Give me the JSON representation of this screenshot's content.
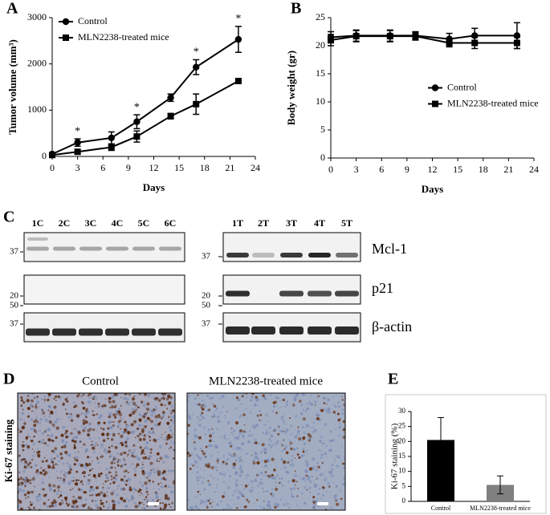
{
  "chart_data": [
    {
      "type": "line",
      "panel_label": "A",
      "x_label": "Days",
      "y_label": "Tumor volume (mm³)",
      "x": [
        0,
        3,
        7,
        10,
        14,
        17,
        22
      ],
      "series": [
        {
          "name": "Control",
          "color": "#000000",
          "marker": "circle",
          "values": [
            50,
            300,
            400,
            750,
            1270,
            1930,
            2530
          ],
          "errors": [
            30,
            80,
            130,
            150,
            80,
            160,
            280
          ]
        },
        {
          "name": "MLN2238-treated mice",
          "color": "#000000",
          "marker": "square",
          "values": [
            30,
            100,
            200,
            430,
            870,
            1130,
            1630
          ],
          "errors": [
            20,
            50,
            70,
            120,
            60,
            220,
            20
          ]
        }
      ],
      "annotations": [
        {
          "x": 3,
          "label": "*"
        },
        {
          "x": 10,
          "label": "*"
        },
        {
          "x": 17,
          "label": "*"
        },
        {
          "x": 22,
          "label": "*"
        }
      ],
      "xlim": [
        0,
        24
      ],
      "xticks": [
        0,
        3,
        6,
        9,
        12,
        15,
        18,
        21,
        24
      ],
      "ylim": [
        0,
        3000
      ],
      "yticks": [
        0,
        1000,
        2000,
        3000
      ],
      "legend": "upper left"
    },
    {
      "type": "line",
      "panel_label": "B",
      "x_label": "Days",
      "y_label": "Body weight (gr)",
      "x": [
        0,
        3,
        7,
        10,
        14,
        17,
        22
      ],
      "series": [
        {
          "name": "Control",
          "color": "#000000",
          "marker": "circle",
          "values": [
            21.5,
            21.8,
            21.8,
            21.8,
            21.2,
            21.8,
            21.8
          ],
          "errors": [
            1,
            1,
            1,
            0.7,
            1,
            1.3,
            2.3
          ]
        },
        {
          "name": "MLN2238-treated mice",
          "color": "#000000",
          "marker": "square",
          "values": [
            21,
            21.7,
            21.7,
            21.7,
            20.5,
            20.5,
            20.5
          ],
          "errors": [
            1,
            1,
            1,
            0.7,
            0.7,
            1,
            1
          ]
        }
      ],
      "xlim": [
        0,
        24
      ],
      "xticks": [
        0,
        3,
        6,
        9,
        12,
        15,
        18,
        21,
        24
      ],
      "ylim": [
        0,
        25
      ],
      "yticks": [
        0,
        5,
        10,
        15,
        20,
        25
      ],
      "legend": "center right"
    },
    {
      "type": "bar",
      "panel_label": "E",
      "y_label": "Ki-67 staining (%)",
      "categories": [
        "Control",
        "MLN2238-treated  mice"
      ],
      "values": [
        20.5,
        5.5
      ],
      "errors": [
        7.5,
        3
      ],
      "colors": [
        "#000000",
        "#808080"
      ],
      "ylim": [
        0,
        30
      ],
      "yticks": [
        0,
        5,
        10,
        15,
        20,
        25,
        30
      ]
    }
  ],
  "blots": {
    "panel_label": "C",
    "lanes_control": [
      "1C",
      "2C",
      "3C",
      "4C",
      "5C",
      "6C"
    ],
    "lanes_treated": [
      "1T",
      "2T",
      "3T",
      "4T",
      "5T"
    ],
    "markers_left": [
      37,
      20,
      50,
      37
    ],
    "markers_right": [
      37,
      20,
      50,
      37
    ],
    "proteins": [
      "Mcl-1",
      "p21",
      "β-actin"
    ]
  },
  "micrographs": {
    "panel_label": "D",
    "titles": [
      "Control",
      "MLN2238-treated mice"
    ],
    "row_label": "Ki-67 staining"
  }
}
